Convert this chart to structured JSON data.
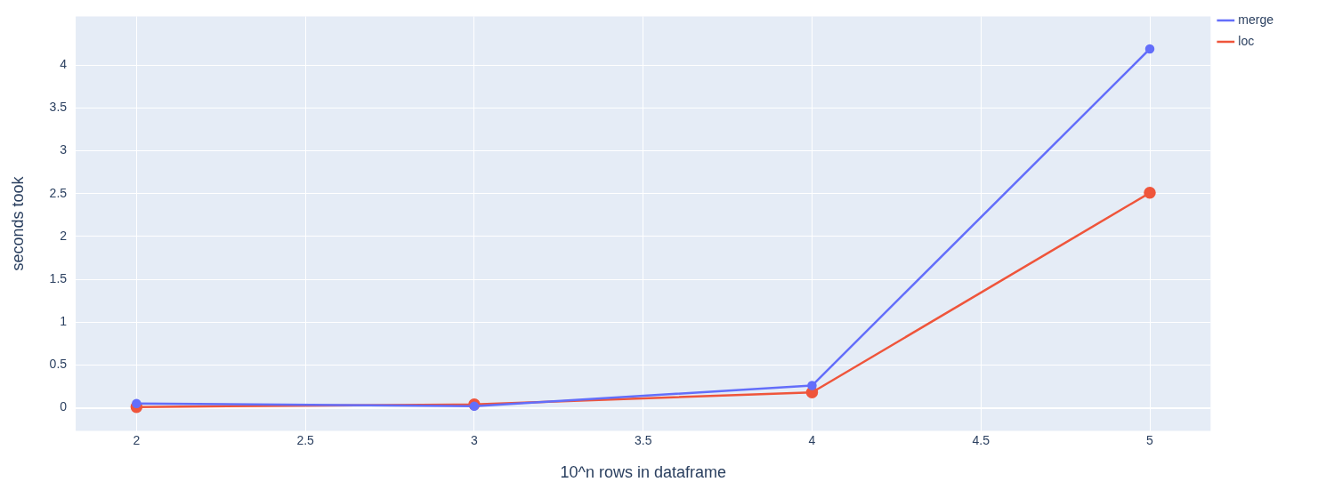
{
  "chart_data": {
    "type": "line",
    "xlabel": "10^n rows in dataframe",
    "ylabel": "seconds took",
    "x": [
      2,
      3,
      4,
      5
    ],
    "series": [
      {
        "name": "merge",
        "color": "#636efa",
        "values": [
          0.05,
          0.02,
          0.26,
          4.19
        ]
      },
      {
        "name": "loc",
        "color": "#ef553b",
        "values": [
          0.01,
          0.04,
          0.18,
          2.51
        ]
      }
    ],
    "xlim": [
      1.82,
      5.18
    ],
    "xticks": [
      2,
      2.5,
      3,
      3.5,
      4,
      4.5,
      5
    ],
    "ylim": [
      -0.27,
      4.57
    ],
    "yticks": [
      0,
      0.5,
      1,
      1.5,
      2,
      2.5,
      3,
      3.5,
      4
    ],
    "grid": true,
    "legend": "top right",
    "marker": "circle",
    "line_style": "solid"
  }
}
